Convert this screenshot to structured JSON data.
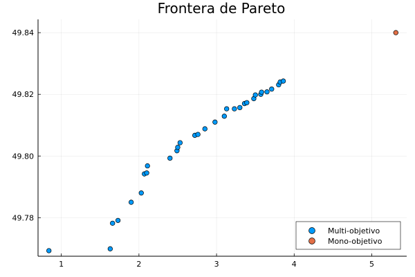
{
  "chart_data": {
    "type": "scatter",
    "title": "Frontera de Pareto",
    "xlabel": "",
    "ylabel": "",
    "xlim": [
      0.7,
      5.45
    ],
    "ylim": [
      49.7675,
      49.8443
    ],
    "x_ticks": [
      1,
      2,
      3,
      4,
      5
    ],
    "y_ticks": [
      49.78,
      49.8,
      49.82,
      49.84
    ],
    "x_tick_labels": [
      "1",
      "2",
      "3",
      "4",
      "5"
    ],
    "y_tick_labels": [
      "49.78",
      "49.80",
      "49.82",
      "49.84"
    ],
    "grid": true,
    "legend_position": "bottom-right",
    "series": [
      {
        "name": "Multi-objetivo",
        "color": "#009AFA",
        "points": [
          [
            0.84,
            49.7693
          ],
          [
            1.63,
            49.7699
          ],
          [
            1.66,
            49.7782
          ],
          [
            1.73,
            49.7791
          ],
          [
            1.9,
            49.785
          ],
          [
            2.03,
            49.788
          ],
          [
            2.07,
            49.7942
          ],
          [
            2.1,
            49.7945
          ],
          [
            2.11,
            49.7968
          ],
          [
            2.4,
            49.7993
          ],
          [
            2.49,
            49.8017
          ],
          [
            2.5,
            49.8028
          ],
          [
            2.53,
            49.8043
          ],
          [
            2.72,
            49.8067
          ],
          [
            2.76,
            49.807
          ],
          [
            2.85,
            49.8088
          ],
          [
            2.98,
            49.811
          ],
          [
            3.1,
            49.8129
          ],
          [
            3.13,
            49.8153
          ],
          [
            3.23,
            49.8153
          ],
          [
            3.3,
            49.8157
          ],
          [
            3.36,
            49.817
          ],
          [
            3.39,
            49.8173
          ],
          [
            3.48,
            49.8186
          ],
          [
            3.5,
            49.8198
          ],
          [
            3.57,
            49.82
          ],
          [
            3.58,
            49.8207
          ],
          [
            3.65,
            49.8208
          ],
          [
            3.71,
            49.8217
          ],
          [
            3.8,
            49.8231
          ],
          [
            3.82,
            49.824
          ],
          [
            3.86,
            49.8243
          ]
        ]
      },
      {
        "name": "Mono-objetivo",
        "color": "#E26F46",
        "points": [
          [
            5.31,
            49.84
          ]
        ]
      }
    ]
  }
}
